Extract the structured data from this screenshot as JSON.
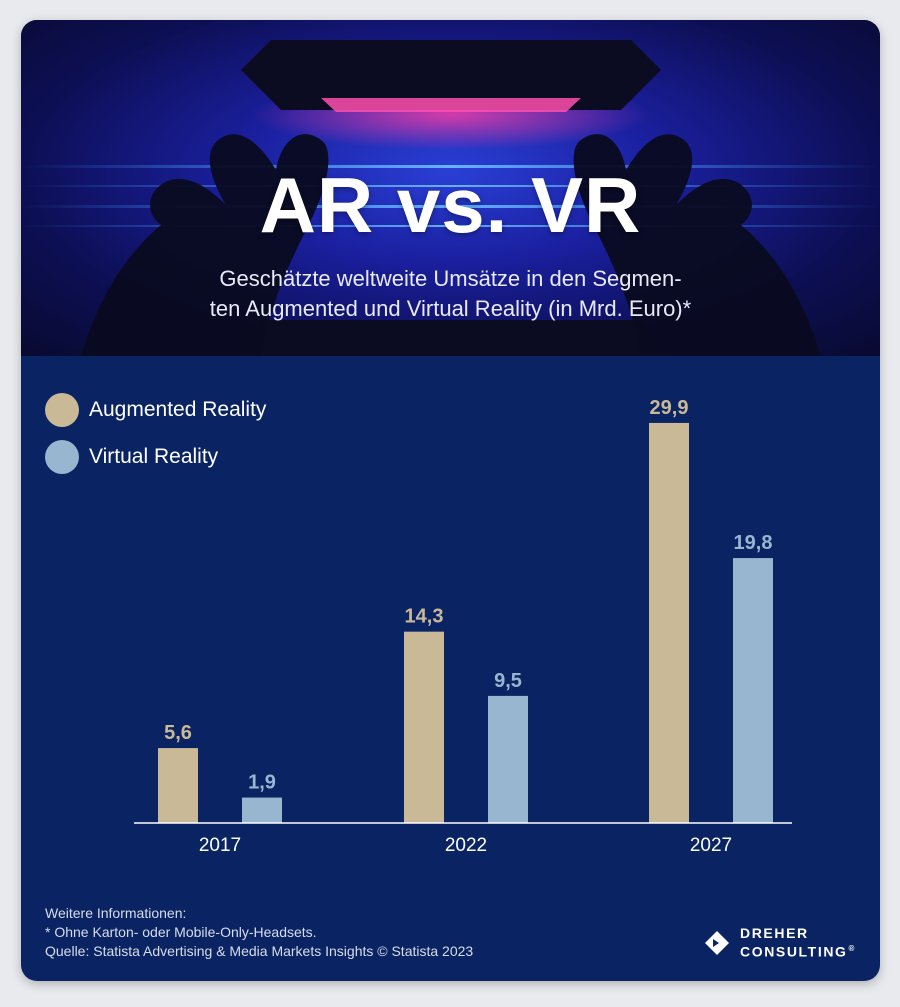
{
  "header": {
    "title": "AR vs. VR",
    "subtitle_line1": "Geschätzte weltweite Umsätze in den Segmen-",
    "subtitle_line2": "ten Augmented und Virtual Reality (in Mrd. Euro)*"
  },
  "colors": {
    "background": "#0a2463",
    "augmented": "#c9b996",
    "virtual": "#98b6d0",
    "text": "#ffffff"
  },
  "chart_data": {
    "type": "bar",
    "title": "AR vs. VR",
    "subtitle": "Geschätzte weltweite Umsätze in den Segmenten Augmented und Virtual Reality (in Mrd. Euro)*",
    "categories": [
      "2017",
      "2022",
      "2027"
    ],
    "series": [
      {
        "name": "Augmented Reality",
        "values": [
          5.6,
          14.3,
          29.9
        ],
        "labels": [
          "5,6",
          "14,3",
          "29,9"
        ]
      },
      {
        "name": "Virtual Reality",
        "values": [
          1.9,
          9.5,
          19.8
        ],
        "labels": [
          "1,9",
          "9,5",
          "19,8"
        ]
      }
    ],
    "xlabel": "",
    "ylabel": "",
    "ylim": [
      0,
      30
    ],
    "grid": false,
    "legend": "top-left"
  },
  "legend": {
    "augmented": "Augmented Reality",
    "virtual": "Virtual Reality"
  },
  "footer": {
    "more_info": "Weitere Informationen:",
    "footnote": "*   Ohne Karton- oder Mobile-Only-Headsets.",
    "source": "Quelle: Statista Advertising & Media Markets Insights © Statista 2023"
  },
  "logo": {
    "line1": "DREHER",
    "line2": "CONSULTING",
    "mark": "®"
  }
}
